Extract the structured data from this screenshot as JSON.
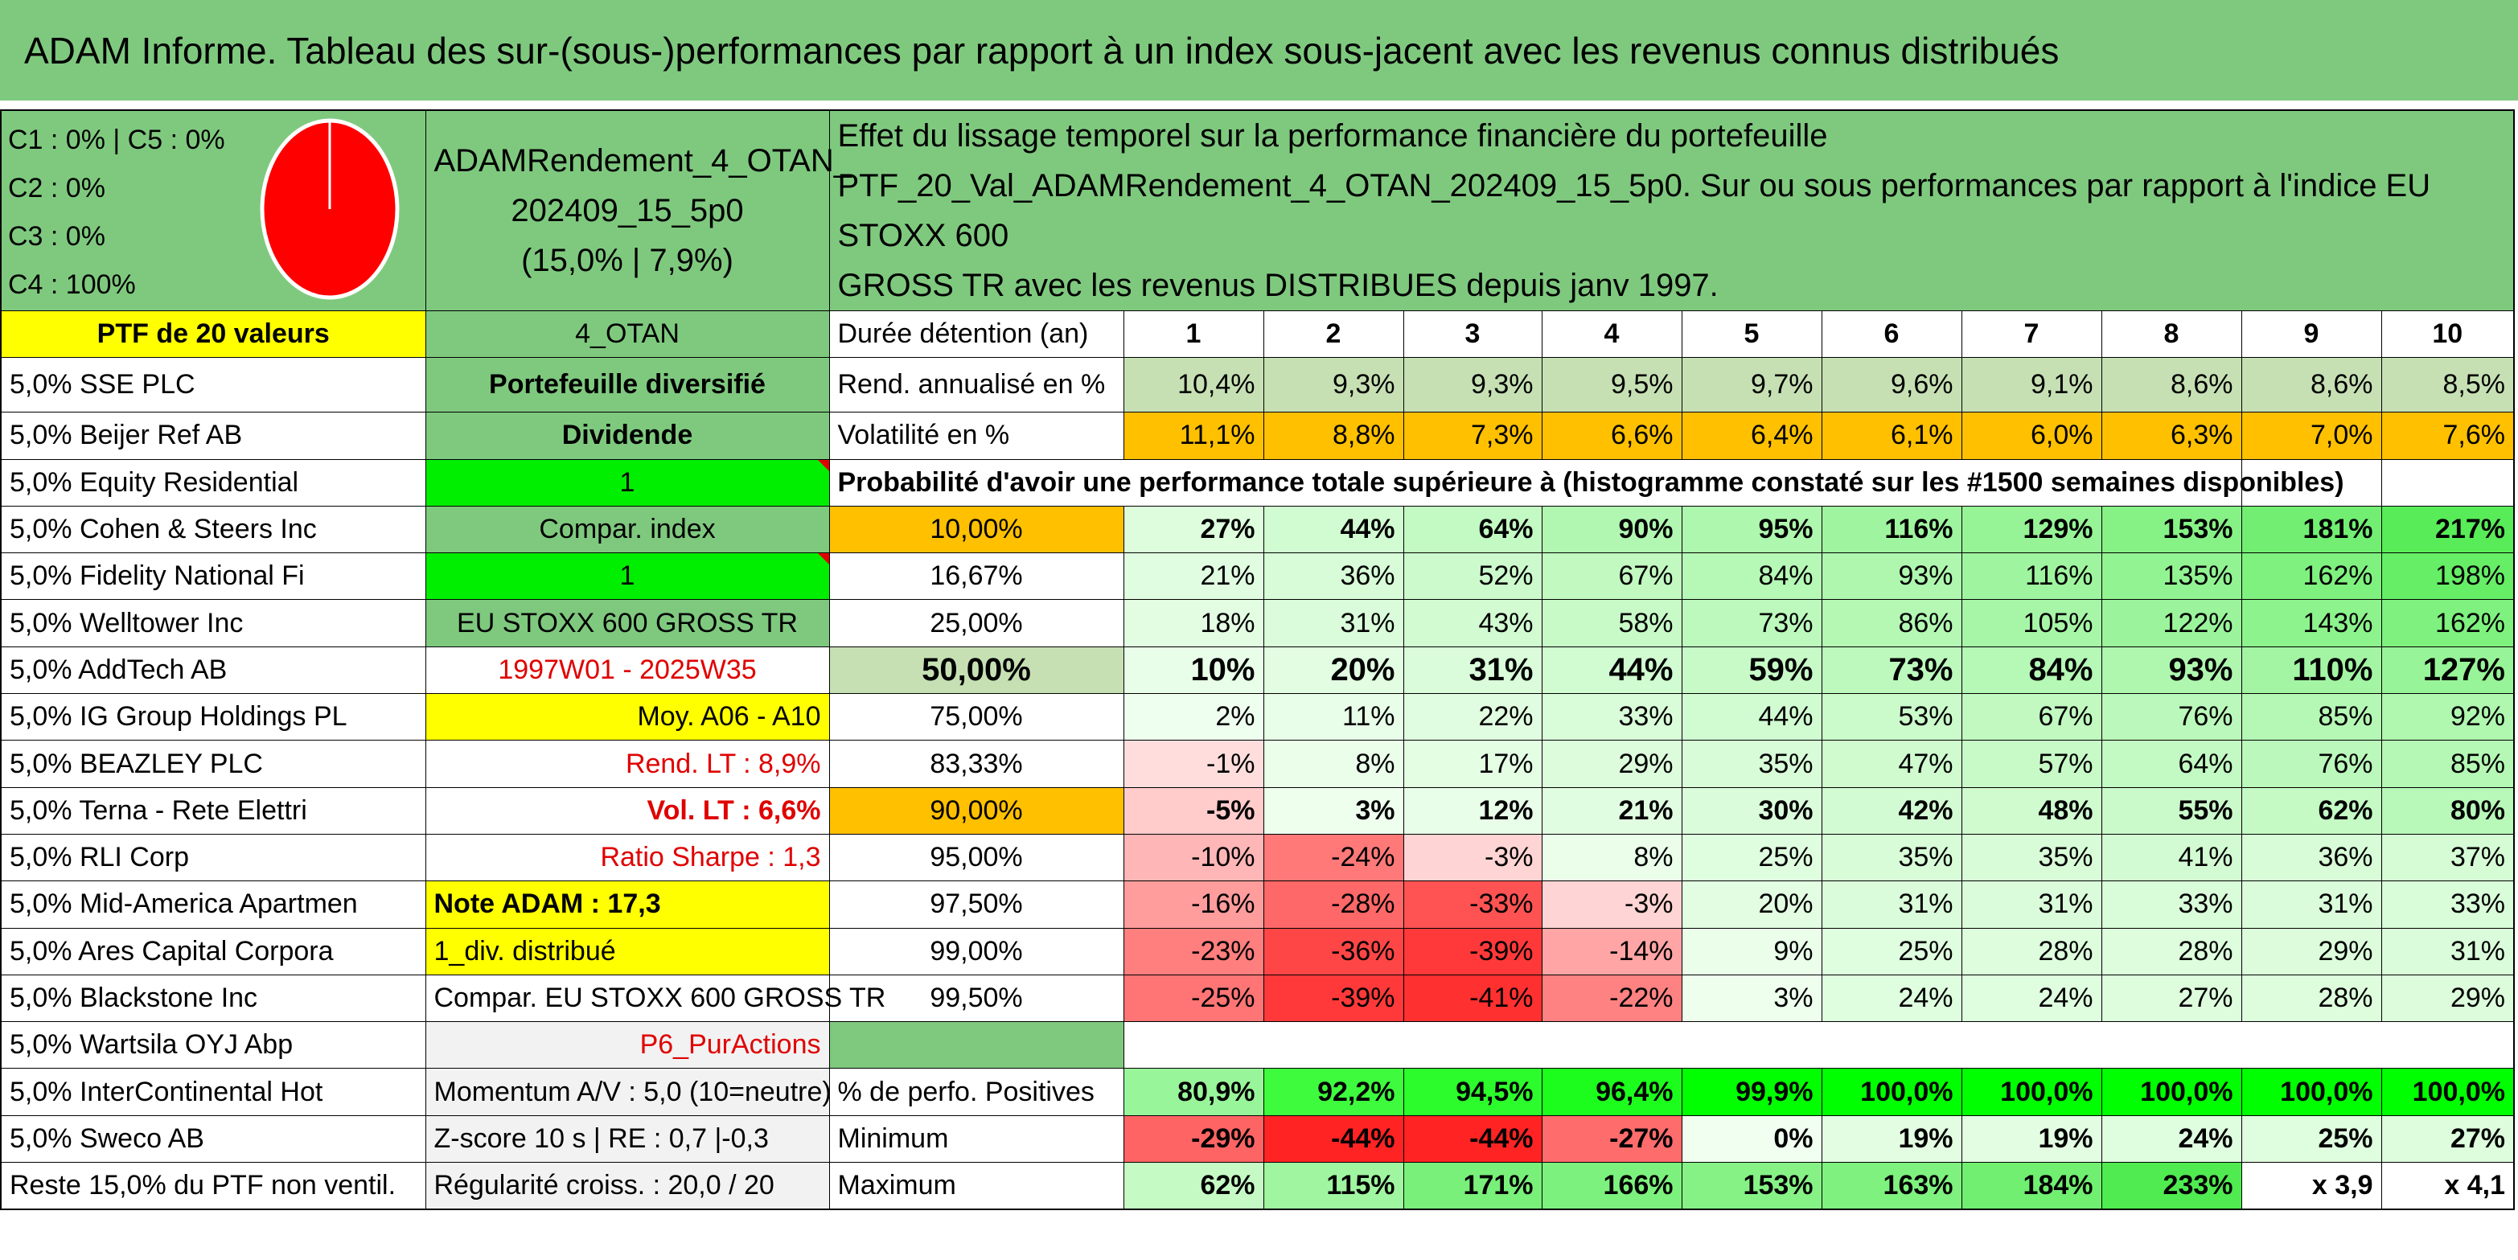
{
  "title": "ADAM Informe. Tableau des sur-(sous-)performances par rapport à un index sous-jacent avec les revenus connus distribués",
  "colors": {
    "green_header": "#7fc97f",
    "yellow": "#ffff00",
    "orange": "#ffc000",
    "red_text": "#e00000"
  },
  "pie": {
    "labels": [
      "C1 : 0% | C5 : 0%",
      "C2 : 0%",
      "C3 : 0%",
      "C4 : 100%"
    ],
    "slices": [
      {
        "name": "C4",
        "value": 100,
        "color": "#ff0000"
      }
    ]
  },
  "portfolio": {
    "name_lines": [
      "ADAMRendement_4_OTAN_",
      "202409_15_5p0",
      "(15,0% | 7,9%)"
    ],
    "description_lines": [
      "Effet du lissage temporel sur la performance financière du portefeuille",
      "PTF_20_Val_ADAMRendement_4_OTAN_202409_15_5p0. Sur ou sous performances par rapport à l'indice EU STOXX 600",
      "GROSS TR avec les revenus DISTRIBUES depuis janv 1997."
    ],
    "count_label": "PTF de 20 valeurs",
    "code": "4_OTAN"
  },
  "holdings": [
    "5,0% SSE PLC",
    "5,0% Beijer Ref AB",
    "5,0% Equity Residential",
    "5,0% Cohen & Steers Inc",
    "5,0% Fidelity National Fi",
    "5,0% Welltower Inc",
    "5,0% AddTech AB",
    "5,0% IG Group Holdings PL",
    "5,0% BEAZLEY PLC",
    "5,0% Terna - Rete Elettri",
    "5,0% RLI Corp",
    "5,0% Mid-America Apartmen",
    "5,0% Ares Capital Corpora",
    "5,0% Blackstone Inc",
    "5,0% Wartsila OYJ Abp",
    "5,0% InterContinental Hot",
    "5,0% Sweco AB",
    "Reste 15,0% du PTF non ventil."
  ],
  "info": [
    "Portefeuille diversifié",
    "Dividende",
    "1",
    "Compar. index",
    "1",
    "EU STOXX 600 GROSS TR",
    "1997W01 - 2025W35",
    "Moy. A06 - A10",
    "Rend. LT : 8,9%",
    "Vol. LT : 6,6%",
    "Ratio Sharpe : 1,3",
    "Note ADAM : 17,3",
    "1_div. distribué",
    "Compar. EU STOXX 600 GROSS TR",
    "P6_PurActions",
    "Momentum A/V : 5,0 (10=neutre)",
    "Z-score 10 s | RE : 0,7 |-0,3",
    "Régularité croiss. : 20,0 / 20"
  ],
  "table": {
    "duration_label": "Durée détention (an)",
    "years": [
      "1",
      "2",
      "3",
      "4",
      "5",
      "6",
      "7",
      "8",
      "9",
      "10"
    ],
    "return_label": "Rend. annualisé en %",
    "returns": [
      "10,4%",
      "9,3%",
      "9,3%",
      "9,5%",
      "9,7%",
      "9,6%",
      "9,1%",
      "8,6%",
      "8,6%",
      "8,5%"
    ],
    "volatility_label": "Volatilité en %",
    "volatility": [
      "11,1%",
      "8,8%",
      "7,3%",
      "6,6%",
      "6,4%",
      "6,1%",
      "6,0%",
      "6,3%",
      "7,0%",
      "7,6%"
    ],
    "probability_label": "Probabilité d'avoir une performance totale supérieure à (histogramme constaté sur les #1500 semaines disponibles)",
    "percentile_rows": [
      {
        "p": "10,00%",
        "v": [
          "27%",
          "44%",
          "64%",
          "90%",
          "95%",
          "116%",
          "129%",
          "153%",
          "181%",
          "217%"
        ]
      },
      {
        "p": "16,67%",
        "v": [
          "21%",
          "36%",
          "52%",
          "67%",
          "84%",
          "93%",
          "116%",
          "135%",
          "162%",
          "198%"
        ]
      },
      {
        "p": "25,00%",
        "v": [
          "18%",
          "31%",
          "43%",
          "58%",
          "73%",
          "86%",
          "105%",
          "122%",
          "143%",
          "162%"
        ]
      },
      {
        "p": "50,00%",
        "v": [
          "10%",
          "20%",
          "31%",
          "44%",
          "59%",
          "73%",
          "84%",
          "93%",
          "110%",
          "127%"
        ]
      },
      {
        "p": "75,00%",
        "v": [
          "2%",
          "11%",
          "22%",
          "33%",
          "44%",
          "53%",
          "67%",
          "76%",
          "85%",
          "92%"
        ]
      },
      {
        "p": "83,33%",
        "v": [
          "-1%",
          "8%",
          "17%",
          "29%",
          "35%",
          "47%",
          "57%",
          "64%",
          "76%",
          "85%"
        ]
      },
      {
        "p": "90,00%",
        "v": [
          "-5%",
          "3%",
          "12%",
          "21%",
          "30%",
          "42%",
          "48%",
          "55%",
          "62%",
          "80%"
        ]
      },
      {
        "p": "95,00%",
        "v": [
          "-10%",
          "-24%",
          "-3%",
          "8%",
          "25%",
          "35%",
          "35%",
          "41%",
          "36%",
          "37%"
        ]
      },
      {
        "p": "97,50%",
        "v": [
          "-16%",
          "-28%",
          "-33%",
          "-3%",
          "20%",
          "31%",
          "31%",
          "33%",
          "31%",
          "33%"
        ]
      },
      {
        "p": "99,00%",
        "v": [
          "-23%",
          "-36%",
          "-39%",
          "-14%",
          "9%",
          "25%",
          "28%",
          "28%",
          "29%",
          "31%"
        ]
      },
      {
        "p": "99,50%",
        "v": [
          "-25%",
          "-39%",
          "-41%",
          "-22%",
          "3%",
          "24%",
          "24%",
          "27%",
          "28%",
          "29%"
        ]
      }
    ],
    "positive_label": "% de perfo. Positives",
    "positive": [
      "80,9%",
      "92,2%",
      "94,5%",
      "96,4%",
      "99,9%",
      "100,0%",
      "100,0%",
      "100,0%",
      "100,0%",
      "100,0%"
    ],
    "minimum_label": "Minimum",
    "minimum": [
      "-29%",
      "-44%",
      "-44%",
      "-27%",
      "0%",
      "19%",
      "19%",
      "24%",
      "25%",
      "27%"
    ],
    "maximum_label": "Maximum",
    "maximum": [
      "62%",
      "115%",
      "171%",
      "166%",
      "153%",
      "163%",
      "184%",
      "233%",
      "x 3,9",
      "x 4,1"
    ]
  }
}
